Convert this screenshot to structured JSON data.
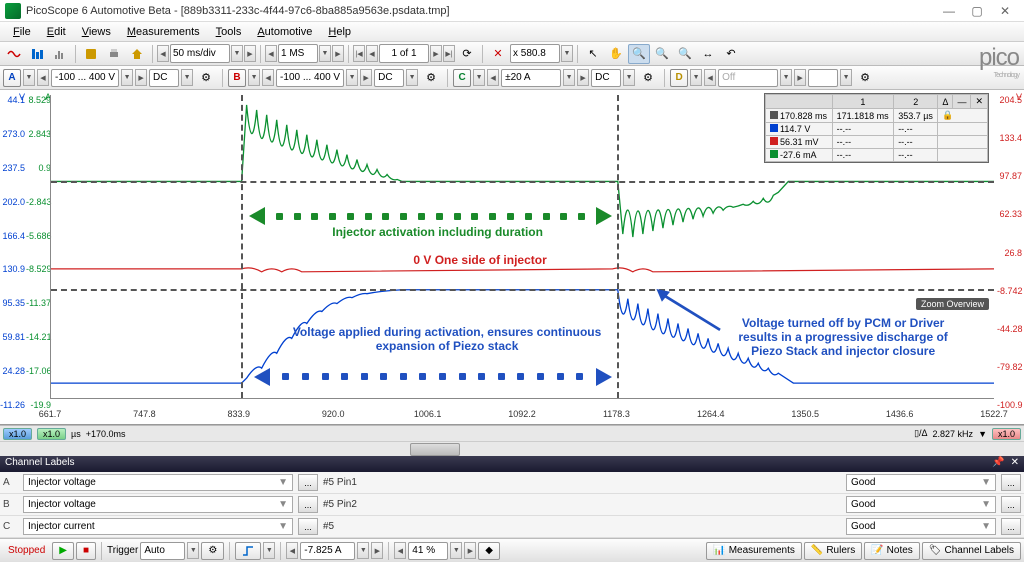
{
  "window": {
    "title": "PicoScope 6 Automotive Beta - [889b3311-233c-4f44-97c6-8ba885a9563e.psdata.tmp]"
  },
  "menu": [
    "File",
    "Edit",
    "Views",
    "Measurements",
    "Tools",
    "Automotive",
    "Help"
  ],
  "toolbar1": {
    "timebase": "50 ms/div",
    "samples": "1 MS",
    "page": "1 of 1",
    "zoom": "x 580.8"
  },
  "channels": {
    "A": {
      "range": "-100 ... 400 V",
      "coupling": "DC",
      "color": "#0040d0"
    },
    "B": {
      "range": "-100 ... 400 V",
      "coupling": "DC",
      "color": "#d02020"
    },
    "C": {
      "range": "±20 A",
      "coupling": "DC",
      "color": "#0a9030"
    },
    "D": {
      "range": "Off",
      "coupling": "",
      "color": "#b89000"
    }
  },
  "y_axis_left_blue": {
    "unit": "V",
    "ticks": [
      "44.1",
      "273.0",
      "237.5",
      "202.0",
      "166.4",
      "130.9",
      "95.35",
      "59.81",
      "24.28",
      "-11.26"
    ]
  },
  "y_axis_left_green": {
    "unit": "A",
    "ticks": [
      "8.529",
      "2.843",
      "0.9",
      "-2.843",
      "-5.686",
      "-8.529",
      "-11.37",
      "-14.21",
      "-17.06",
      "-19.9"
    ]
  },
  "y_axis_right": {
    "unit": "V",
    "ticks": [
      "204.5",
      "133.4",
      "97.87",
      "62.33",
      "26.8",
      "-8.742",
      "-44.28",
      "-79.82",
      "-100.9"
    ]
  },
  "x_axis": {
    "ticks": [
      "661.7",
      "747.8",
      "833.9",
      "920.0",
      "1006.1",
      "1092.2",
      "1178.3",
      "1264.4",
      "1350.5",
      "1436.6",
      "1522.7"
    ]
  },
  "measurements": {
    "cols": [
      "",
      "1",
      "2",
      "Δ"
    ],
    "rows": [
      {
        "icon": "#555",
        "c1": "170.828 ms",
        "c2": "171.1818 ms",
        "c3": "353.7 µs"
      },
      {
        "icon": "#0040d0",
        "c1": "114.7 V",
        "c2": "--.--",
        "c3": "--.--"
      },
      {
        "icon": "#d02020",
        "c1": "56.31 mV",
        "c2": "--.--",
        "c3": "--.--"
      },
      {
        "icon": "#0a9030",
        "c1": "-27.6 mA",
        "c2": "--.--",
        "c3": "--.--"
      }
    ]
  },
  "annotations": {
    "a1": "Injector activation including  duration",
    "a2": "0 V One side of injector",
    "a3": "Voltage applied during activation, ensures continuous expansion of  Piezo stack",
    "a4": "Voltage turned off by PCM or Driver results in a progressive discharge of Piezo Stack and injector closure",
    "zoom": "Zoom Overview"
  },
  "status_strip": {
    "x1": "x1.0",
    "x2": "x1.0",
    "unit": "µs",
    "offset": "+170.0ms",
    "freq": "2.827 kHz",
    "x3": "x1.0"
  },
  "channel_labels_panel": {
    "title": "Channel Labels",
    "rows": [
      {
        "ch": "A",
        "name": "Injector voltage",
        "pin": "#5 Pin1",
        "status": "Good"
      },
      {
        "ch": "B",
        "name": "Injector voltage",
        "pin": "#5 Pin2",
        "status": "Good"
      },
      {
        "ch": "C",
        "name": "Injector current",
        "pin": "#5",
        "status": "Good"
      }
    ]
  },
  "bottom": {
    "status": "Stopped",
    "trigger": "Trigger",
    "mode": "Auto",
    "level": "-7.825 A",
    "pretrig": "41 %",
    "btns": [
      "Measurements",
      "Rulers",
      "Notes",
      "Channel Labels"
    ]
  },
  "logo": "pico",
  "logo_sub": "Technology"
}
